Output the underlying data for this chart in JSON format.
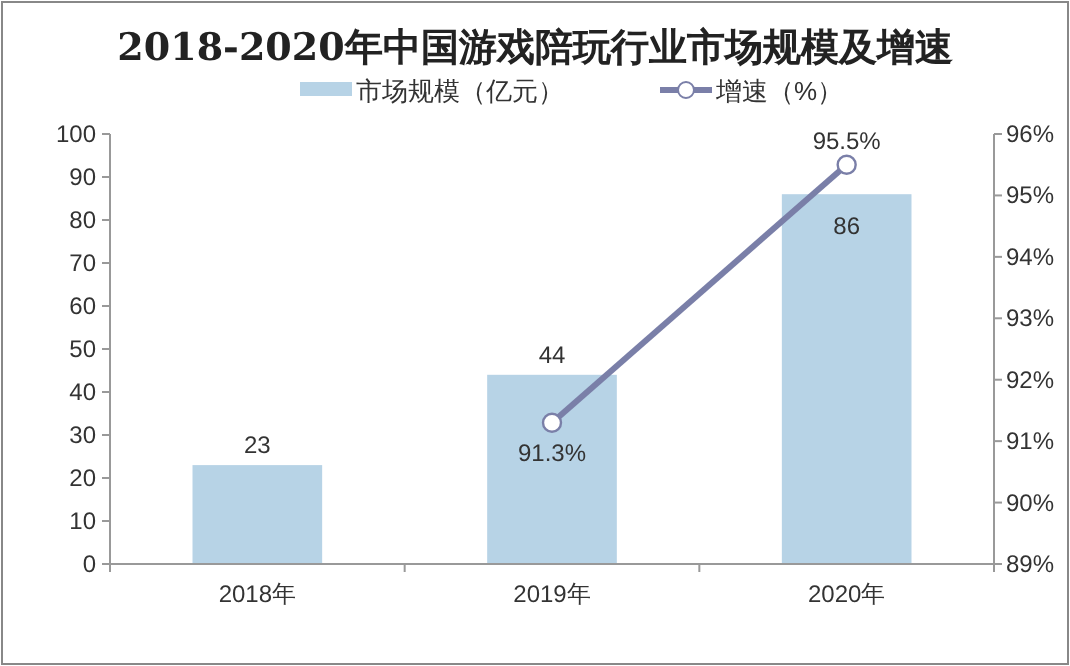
{
  "chart_data": {
    "type": "bar",
    "title": "2018-2020年中国游戏陪玩行业市场规模及增速",
    "categories": [
      "2018年",
      "2019年",
      "2020年"
    ],
    "series": [
      {
        "name": "市场规模（亿元）",
        "color": "#b7d3e6",
        "values": [
          23,
          44,
          86
        ],
        "value_labels": [
          "23",
          "44",
          "86"
        ]
      },
      {
        "name": "增速（%）",
        "type": "line",
        "axis": "y2",
        "color": "#7a7fa8",
        "values": [
          null,
          91.3,
          95.5
        ],
        "value_labels": [
          null,
          "91.3%",
          "95.5%"
        ],
        "marker": "circle"
      }
    ],
    "ylim": [
      0,
      100
    ],
    "yticks": [
      0,
      10,
      20,
      30,
      40,
      50,
      60,
      70,
      80,
      90,
      100
    ],
    "y2lim": [
      89,
      96
    ],
    "y2ticks": [
      {
        "value": 89,
        "label": "89%"
      },
      {
        "value": 90,
        "label": "90%"
      },
      {
        "value": 91,
        "label": "91%"
      },
      {
        "value": 92,
        "label": "92%"
      },
      {
        "value": 93,
        "label": "93%"
      },
      {
        "value": 94,
        "label": "94%"
      },
      {
        "value": 95,
        "label": "95%"
      },
      {
        "value": 96,
        "label": "96%"
      }
    ],
    "legend": "top",
    "grid": false
  }
}
